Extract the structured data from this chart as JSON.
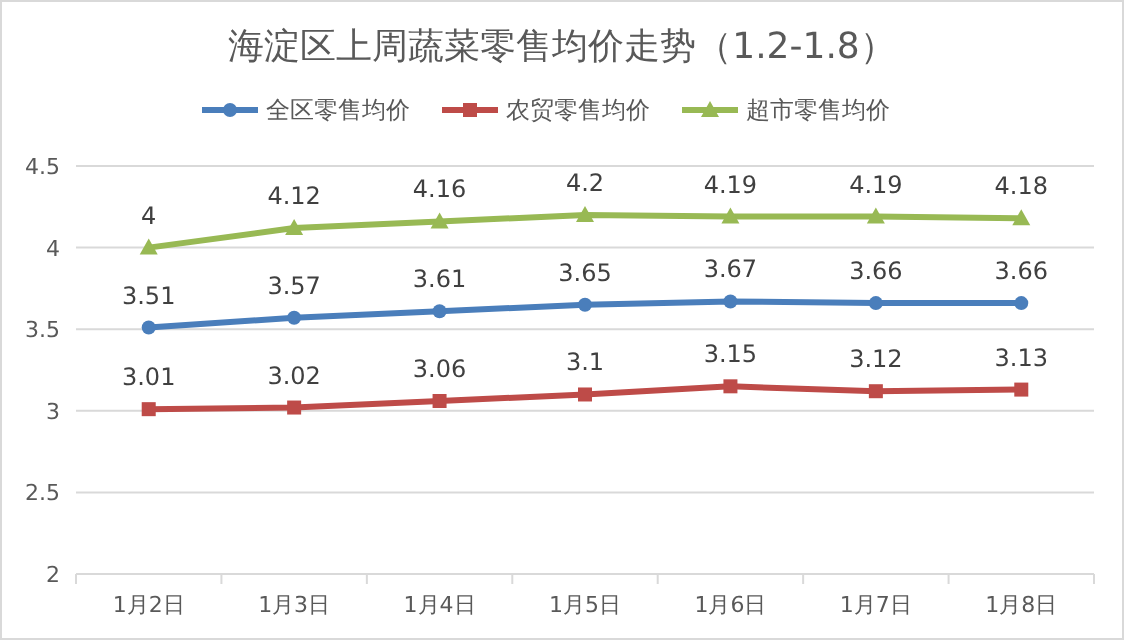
{
  "chart_data": {
    "type": "line",
    "title": "海淀区上周蔬菜零售均价走势（1.2-1.8）",
    "categories": [
      "1月2日",
      "1月3日",
      "1月4日",
      "1月5日",
      "1月6日",
      "1月7日",
      "1月8日"
    ],
    "series": [
      {
        "name": "全区零售均价",
        "color": "#4a7ebb",
        "marker": "circle",
        "values": [
          3.51,
          3.57,
          3.61,
          3.65,
          3.67,
          3.66,
          3.66
        ]
      },
      {
        "name": "农贸零售均价",
        "color": "#be4b48",
        "marker": "square",
        "values": [
          3.01,
          3.02,
          3.06,
          3.1,
          3.15,
          3.12,
          3.13
        ]
      },
      {
        "name": "超市零售均价",
        "color": "#98b954",
        "marker": "triangle",
        "values": [
          4,
          4.12,
          4.16,
          4.2,
          4.19,
          4.19,
          4.18
        ]
      }
    ],
    "ylim": [
      2,
      4.5
    ],
    "yticks": [
      2,
      2.5,
      3,
      3.5,
      4,
      4.5
    ],
    "grid": "y",
    "legend": "top",
    "data_labels": true,
    "line_style": "solid"
  }
}
